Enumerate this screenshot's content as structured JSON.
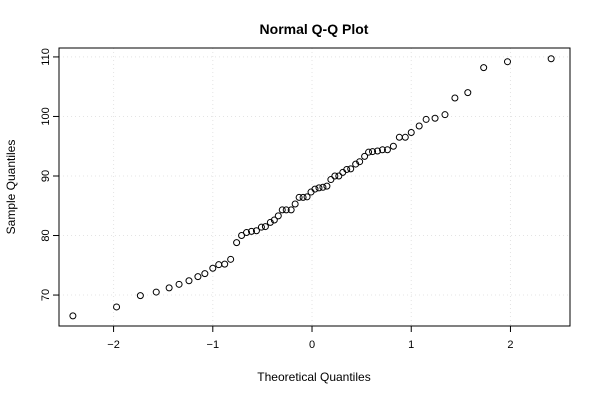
{
  "chart_data": {
    "type": "scatter",
    "title": "Normal Q-Q Plot",
    "xlabel": "Theoretical Quantiles",
    "ylabel": "Sample Quantiles",
    "xlim": [
      -2.55,
      2.6
    ],
    "ylim": [
      64.8,
      111.5
    ],
    "x_ticks": [
      -2,
      -1,
      0,
      1,
      2
    ],
    "x_tick_labels": [
      "−2",
      "−1",
      "0",
      "1",
      "2"
    ],
    "y_ticks": [
      70,
      80,
      90,
      100,
      110
    ],
    "y_tick_labels": [
      "70",
      "80",
      "90",
      "100",
      "110"
    ],
    "grid": true,
    "points": {
      "x": [
        -2.41,
        -1.97,
        -1.73,
        -1.57,
        -1.44,
        -1.34,
        -1.24,
        -1.15,
        -1.08,
        -1.0,
        -0.94,
        -0.88,
        -0.82,
        -0.76,
        -0.71,
        -0.66,
        -0.61,
        -0.56,
        -0.51,
        -0.47,
        -0.42,
        -0.38,
        -0.34,
        -0.3,
        -0.26,
        -0.21,
        -0.17,
        -0.13,
        -0.09,
        -0.05,
        -0.01,
        0.03,
        0.07,
        0.11,
        0.15,
        0.19,
        0.23,
        0.27,
        0.31,
        0.35,
        0.39,
        0.44,
        0.48,
        0.53,
        0.57,
        0.61,
        0.66,
        0.71,
        0.76,
        0.82,
        0.88,
        0.94,
        1.0,
        1.08,
        1.15,
        1.24,
        1.34,
        1.44,
        1.57,
        1.73,
        1.97,
        2.41
      ],
      "y": [
        66.5,
        68.0,
        69.9,
        70.5,
        71.2,
        71.8,
        72.4,
        73.1,
        73.6,
        74.5,
        75.1,
        75.2,
        76.0,
        78.8,
        80.0,
        80.5,
        80.7,
        80.8,
        81.4,
        81.5,
        82.2,
        82.6,
        83.3,
        84.3,
        84.3,
        84.3,
        85.3,
        86.4,
        86.4,
        86.5,
        87.3,
        87.8,
        88.0,
        88.1,
        88.3,
        89.4,
        90.0,
        90.0,
        90.6,
        91.1,
        91.2,
        92.0,
        92.4,
        93.3,
        94.0,
        94.1,
        94.2,
        94.4,
        94.4,
        95.0,
        96.5,
        96.5,
        97.3,
        98.4,
        99.5,
        99.7,
        100.3,
        103.1,
        104.0,
        108.2,
        109.2,
        109.7
      ]
    }
  }
}
